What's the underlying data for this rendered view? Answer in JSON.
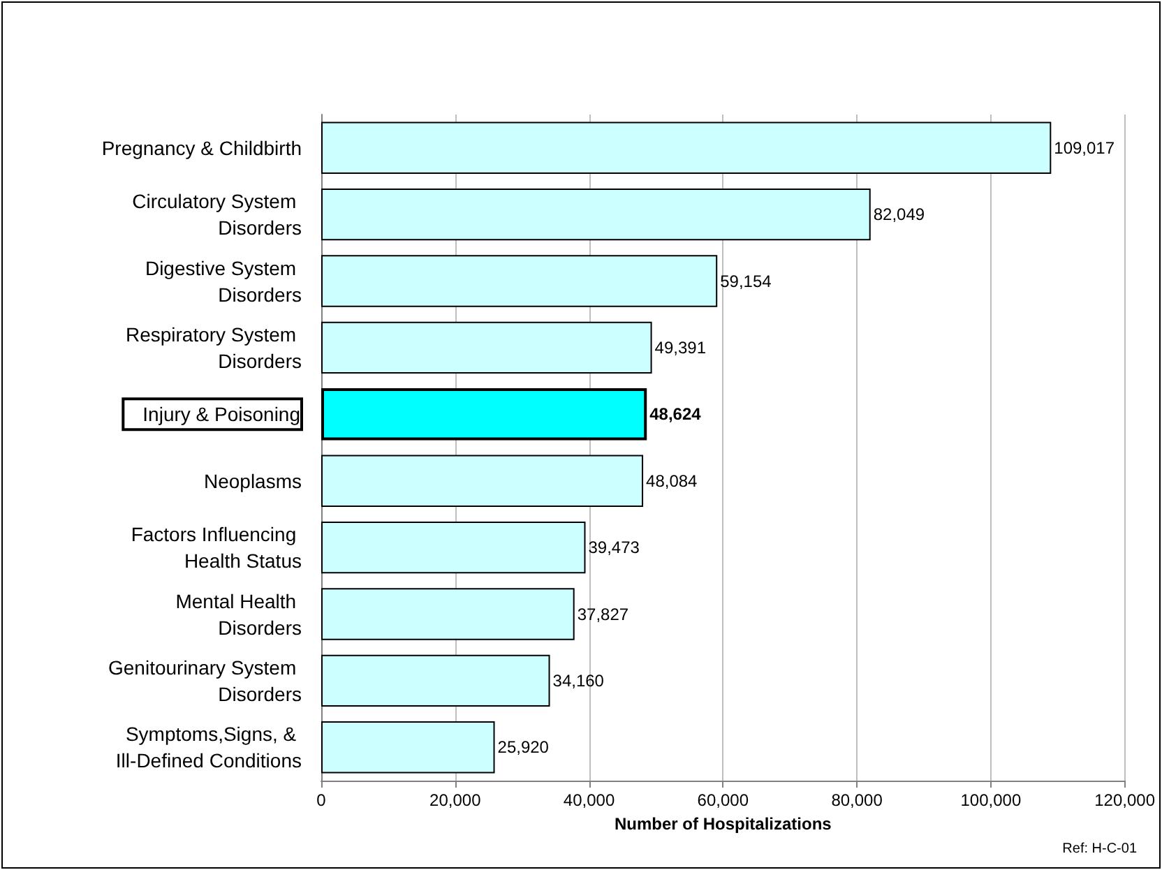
{
  "chart_data": {
    "type": "bar",
    "orientation": "horizontal",
    "xlabel": "Number of Hospitalizations",
    "categories": [
      "Pregnancy & Childbirth",
      "Circulatory System Disorders",
      "Digestive System Disorders",
      "Respiratory System Disorders",
      "Injury & Poisoning",
      "Neoplasms",
      "Factors Influencing Health Status",
      "Mental Health Disorders",
      "Genitourinary System Disorders",
      "Symptoms,Signs, & Ill-Defined Conditions"
    ],
    "values": [
      109017,
      82049,
      59154,
      49391,
      48624,
      48084,
      39473,
      37827,
      34160,
      25920
    ],
    "colors": [
      "#ccffff",
      "#ccffff",
      "#ccffff",
      "#ccffff",
      "#00ffff",
      "#ccffff",
      "#ccffff",
      "#ccffff",
      "#ccffff",
      "#ccffff"
    ],
    "xlim": [
      0,
      120000
    ],
    "xticks": [
      {
        "value": 0,
        "label": "0"
      },
      {
        "value": 20000,
        "label": "20,000"
      },
      {
        "value": 40000,
        "label": "40,000"
      },
      {
        "value": 60000,
        "label": "60,000"
      },
      {
        "value": 80000,
        "label": "80,000"
      },
      {
        "value": 100000,
        "label": "100,000"
      },
      {
        "value": 120000,
        "label": "120,000"
      }
    ],
    "value_labels": [
      "109,017",
      "82,049",
      "59,154",
      "49,391",
      "48,624",
      "48,084",
      "39,473",
      "37,827",
      "34,160",
      "25,920"
    ],
    "grid": "x",
    "annotations": [
      "Ref: H-C-01"
    ]
  }
}
